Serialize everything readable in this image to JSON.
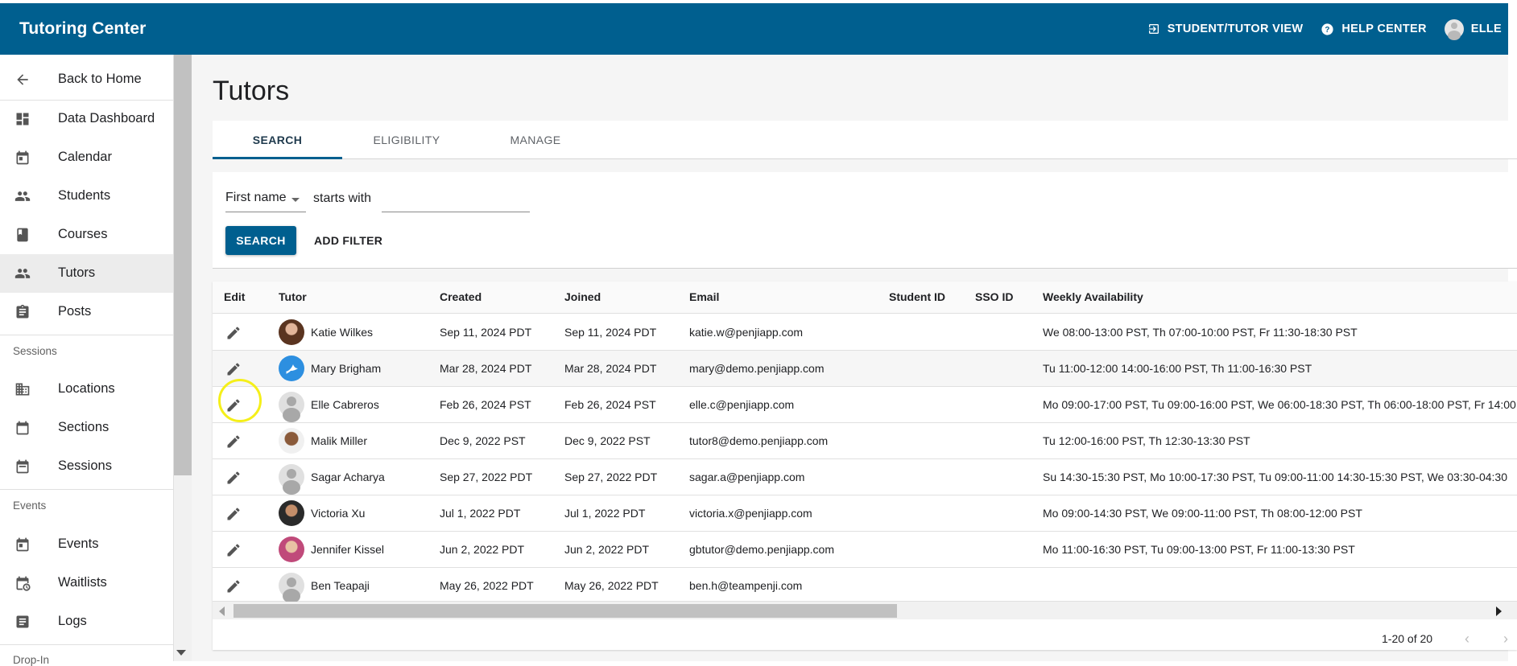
{
  "app": {
    "title": "Tutoring Center"
  },
  "header": {
    "actions": [
      {
        "label": "STUDENT/TUTOR VIEW",
        "icon": "switch-view-icon"
      },
      {
        "label": "HELP CENTER",
        "icon": "help-icon"
      },
      {
        "label": "ELLE",
        "icon": "avatar"
      }
    ]
  },
  "sidebar": {
    "items": [
      {
        "label": "Back to Home",
        "icon": "arrow-back-icon"
      },
      {
        "label": "Data Dashboard",
        "icon": "dashboard-icon"
      },
      {
        "label": "Calendar",
        "icon": "calendar-icon"
      },
      {
        "label": "Students",
        "icon": "people-icon"
      },
      {
        "label": "Courses",
        "icon": "book-icon"
      },
      {
        "label": "Tutors",
        "icon": "people-icon",
        "active": true
      },
      {
        "label": "Posts",
        "icon": "clipboard-icon"
      }
    ],
    "sessions_section": "Sessions",
    "session_items": [
      {
        "label": "Locations",
        "icon": "building-icon"
      },
      {
        "label": "Sections",
        "icon": "calendar-icon"
      },
      {
        "label": "Sessions",
        "icon": "calendar-icon"
      }
    ],
    "events_section": "Events",
    "event_items": [
      {
        "label": "Events",
        "icon": "calendar-icon"
      },
      {
        "label": "Waitlists",
        "icon": "waitlist-icon"
      },
      {
        "label": "Logs",
        "icon": "list-icon"
      }
    ],
    "dropin_section": "Drop-In"
  },
  "main": {
    "page_title": "Tutors",
    "tabs": [
      {
        "label": "SEARCH",
        "active": true
      },
      {
        "label": "ELIGIBILITY"
      },
      {
        "label": "MANAGE"
      }
    ],
    "search": {
      "field": "First name",
      "operator": "starts with",
      "value": "",
      "search_button": "SEARCH",
      "add_filter_button": "ADD FILTER"
    },
    "table": {
      "columns": [
        "Edit",
        "Tutor",
        "Created",
        "Joined",
        "Email",
        "Student ID",
        "SSO ID",
        "Weekly Availability"
      ],
      "rows": [
        {
          "tutor": "Katie Wilkes",
          "created": "Sep 11, 2024 PDT",
          "joined": "Sep 11, 2024 PDT",
          "email": "katie.w@penjiapp.com",
          "student_id": "",
          "sso_id": "",
          "availability": "We 08:00-13:00 PST, Th 07:00-10:00 PST, Fr 11:30-18:30 PST"
        },
        {
          "tutor": "Mary Brigham",
          "created": "Mar 28, 2024 PDT",
          "joined": "Mar 28, 2024 PDT",
          "email": "mary@demo.penjiapp.com",
          "student_id": "",
          "sso_id": "",
          "availability": "Tu 11:00-12:00 14:00-16:00 PST, Th 11:00-16:30 PST"
        },
        {
          "tutor": "Elle Cabreros",
          "created": "Feb 26, 2024 PST",
          "joined": "Feb 26, 2024 PST",
          "email": "elle.c@penjiapp.com",
          "student_id": "",
          "sso_id": "",
          "availability": "Mo 09:00-17:00 PST, Tu 09:00-16:00 PST, We 06:00-18:30 PST, Th 06:00-18:00 PST, Fr 14:00"
        },
        {
          "tutor": "Malik Miller",
          "created": "Dec 9, 2022 PST",
          "joined": "Dec 9, 2022 PST",
          "email": "tutor8@demo.penjiapp.com",
          "student_id": "",
          "sso_id": "",
          "availability": "Tu 12:00-16:00 PST, Th 12:30-13:30 PST"
        },
        {
          "tutor": "Sagar Acharya",
          "created": "Sep 27, 2022 PDT",
          "joined": "Sep 27, 2022 PDT",
          "email": "sagar.a@penjiapp.com",
          "student_id": "",
          "sso_id": "",
          "availability": "Su 14:30-15:30 PST, Mo 10:00-17:30 PST, Tu 09:00-11:00 14:30-15:30 PST, We 03:30-04:30"
        },
        {
          "tutor": "Victoria Xu",
          "created": "Jul 1, 2022 PDT",
          "joined": "Jul 1, 2022 PDT",
          "email": "victoria.x@penjiapp.com",
          "student_id": "",
          "sso_id": "",
          "availability": "Mo 09:00-14:30 PST, We 09:00-11:00 PST, Th 08:00-12:00 PST"
        },
        {
          "tutor": "Jennifer Kissel",
          "created": "Jun 2, 2022 PDT",
          "joined": "Jun 2, 2022 PDT",
          "email": "gbtutor@demo.penjiapp.com",
          "student_id": "",
          "sso_id": "",
          "availability": "Mo 11:00-16:30 PST, Tu 09:00-13:00 PST, Fr 11:00-13:30 PST"
        },
        {
          "tutor": "Ben Teapaji",
          "created": "May 26, 2022 PDT",
          "joined": "May 26, 2022 PDT",
          "email": "ben.h@teampenji.com",
          "student_id": "",
          "sso_id": "",
          "availability": ""
        }
      ]
    },
    "pagination": {
      "range": "1-20 of 20",
      "prev": "‹",
      "next": "›"
    }
  },
  "colors": {
    "primary": "#005f8f",
    "highlight": "#f5ef1a"
  }
}
